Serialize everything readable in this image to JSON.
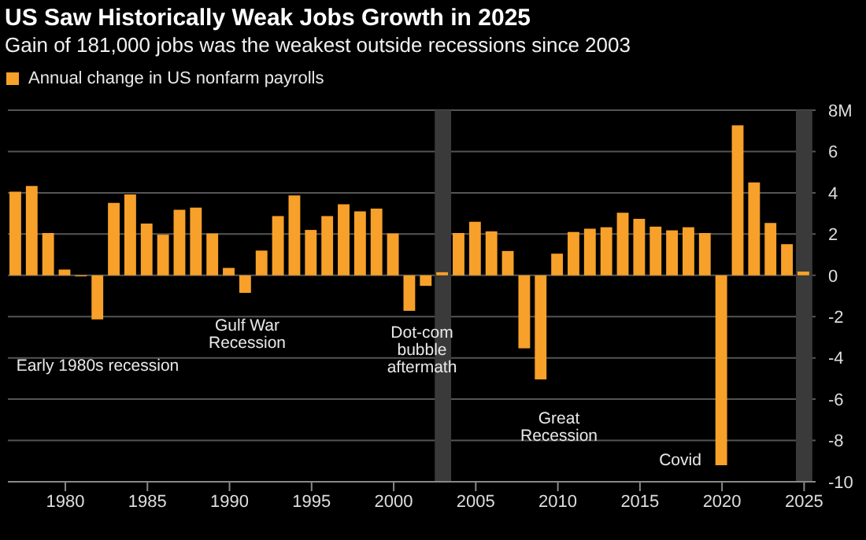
{
  "chart_data": {
    "type": "bar",
    "title": "US Saw Historically Weak Jobs Growth in 2025",
    "subtitle": "Gain of 181,000 jobs was the weakest outside recessions since 2003",
    "x": [
      1977,
      1978,
      1979,
      1980,
      1981,
      1982,
      1983,
      1984,
      1985,
      1986,
      1987,
      1988,
      1989,
      1990,
      1991,
      1992,
      1993,
      1994,
      1995,
      1996,
      1997,
      1998,
      1999,
      2000,
      2001,
      2002,
      2003,
      2004,
      2005,
      2006,
      2007,
      2008,
      2009,
      2010,
      2011,
      2012,
      2013,
      2014,
      2015,
      2016,
      2017,
      2018,
      2019,
      2020,
      2021,
      2022,
      2023,
      2024,
      2025
    ],
    "series": [
      {
        "name": "Annual change in US nonfarm payrolls",
        "color": "#f7a02a",
        "values": [
          4.05,
          4.33,
          2.05,
          0.28,
          -0.05,
          -2.13,
          3.51,
          3.92,
          2.51,
          1.97,
          3.18,
          3.28,
          2.03,
          0.36,
          -0.85,
          1.2,
          2.87,
          3.87,
          2.2,
          2.87,
          3.44,
          3.1,
          3.23,
          2.03,
          -1.72,
          -0.51,
          0.15,
          2.05,
          2.59,
          2.13,
          1.18,
          -3.54,
          -5.04,
          1.05,
          2.1,
          2.26,
          2.33,
          3.03,
          2.74,
          2.36,
          2.18,
          2.33,
          2.05,
          -9.2,
          7.27,
          4.5,
          2.54,
          1.51,
          0.18
        ]
      }
    ],
    "xlim": [
      1976.5,
      2025.7
    ],
    "xticks": [
      1980,
      1985,
      1990,
      1995,
      2000,
      2005,
      2010,
      2015,
      2020,
      2025
    ],
    "ylim": [
      -10,
      8
    ],
    "yticks": [
      -10,
      -8,
      -6,
      -4,
      -2,
      0,
      2,
      4,
      6,
      {
        "value": 8,
        "label": "8M"
      }
    ],
    "grid": "y",
    "legend": "top left",
    "bands": [
      {
        "axis": "x",
        "from": 2002.5,
        "to": 2003.5,
        "color": "#3a3a3a"
      },
      {
        "axis": "x",
        "from": 2024.5,
        "to": 2025.5,
        "color": "#3a3a3a"
      }
    ],
    "annotations": [
      "Early 1980s recession",
      "Gulf War\nRecession",
      "Dot-com\nbubble\naftermath",
      "Great\nRecession",
      "Covid"
    ]
  }
}
